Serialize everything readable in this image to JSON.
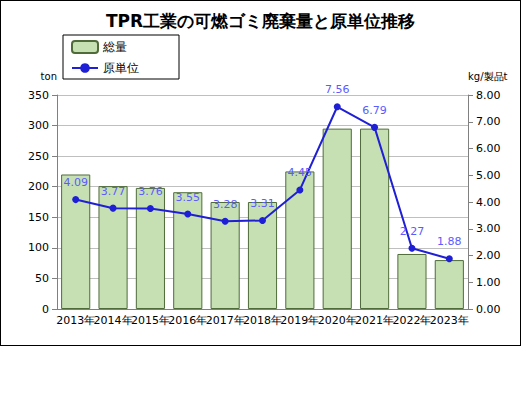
{
  "chart_data": {
    "type": "bar",
    "title": "TPR工業の可燃ゴミ廃棄量と原単位推移",
    "categories": [
      "2013年",
      "2014年",
      "2015年",
      "2016年",
      "2017年",
      "2018年",
      "2019年",
      "2020年",
      "2021年",
      "2022年",
      "2023年"
    ],
    "series": [
      {
        "name": "総量",
        "type": "bar",
        "color": "#c6e0b4",
        "values": [
          220,
          201,
          198,
          191,
          175,
          175,
          225,
          295,
          295,
          90,
          80
        ]
      },
      {
        "name": "原単位",
        "type": "line",
        "axis": "y2",
        "color": "#1f1fd6",
        "marker": "circle",
        "data_labels": true,
        "values": [
          4.09,
          3.77,
          3.76,
          3.55,
          3.28,
          3.31,
          4.45,
          7.56,
          6.79,
          2.27,
          1.88
        ]
      }
    ],
    "ylabel": "ton",
    "y2label": "kg/製品t",
    "ylim": [
      0,
      350
    ],
    "yticks": [
      0,
      50,
      100,
      150,
      200,
      250,
      300,
      350
    ],
    "y2lim": [
      0,
      8
    ],
    "y2ticks": [
      {
        "value": 0,
        "label": "0.00"
      },
      {
        "value": 1,
        "label": "1.00"
      },
      {
        "value": 2,
        "label": "2.00"
      },
      {
        "value": 3,
        "label": "3.00"
      },
      {
        "value": 4,
        "label": "4.00"
      },
      {
        "value": 5,
        "label": "5.00"
      },
      {
        "value": 6,
        "label": "6.00"
      },
      {
        "value": 7,
        "label": "7.00"
      },
      {
        "value": 8,
        "label": "8.00"
      }
    ],
    "grid": true,
    "legend": "top-left"
  }
}
